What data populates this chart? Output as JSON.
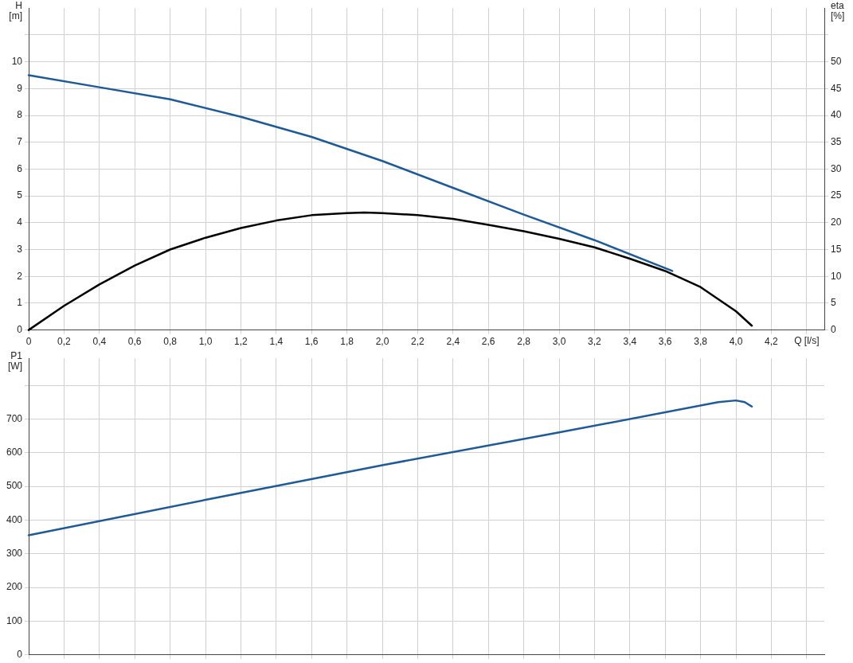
{
  "chart_data": [
    {
      "type": "line",
      "xlabel": "Q [l/s]",
      "ylabel": "H [m]",
      "y2label": "eta [%]",
      "xlim": [
        0,
        4.5
      ],
      "xticks": [
        0,
        {
          "value": 0.2,
          "label": "0,2"
        },
        {
          "value": 0.4,
          "label": "0,4"
        },
        {
          "value": 0.6,
          "label": "0,6"
        },
        {
          "value": 0.8,
          "label": "0,8"
        },
        {
          "value": 1,
          "label": "1,0"
        },
        {
          "value": 1.2,
          "label": "1,2"
        },
        {
          "value": 1.4,
          "label": "1,4"
        },
        {
          "value": 1.6,
          "label": "1,6"
        },
        {
          "value": 1.8,
          "label": "1,8"
        },
        {
          "value": 2,
          "label": "2,0"
        },
        {
          "value": 2.2,
          "label": "2,2"
        },
        {
          "value": 2.4,
          "label": "2,4"
        },
        {
          "value": 2.6,
          "label": "2,6"
        },
        {
          "value": 2.8,
          "label": "2,8"
        },
        {
          "value": 3,
          "label": "3,0"
        },
        {
          "value": 3.2,
          "label": "3,2"
        },
        {
          "value": 3.4,
          "label": "3,4"
        },
        {
          "value": 3.6,
          "label": "3,6"
        },
        {
          "value": 3.8,
          "label": "3,8"
        },
        {
          "value": 4,
          "label": "4,0"
        },
        {
          "value": 4.2,
          "label": "4,2"
        },
        {
          "value": 4.4,
          "label": null
        }
      ],
      "ylim": [
        0,
        12
      ],
      "yticks": [
        0,
        1,
        2,
        3,
        4,
        5,
        6,
        7,
        8,
        9,
        10,
        {
          "value": 11,
          "label": null
        }
      ],
      "y2lim": [
        0,
        60
      ],
      "y2ticks": [
        0,
        5,
        10,
        15,
        20,
        25,
        30,
        35,
        40,
        45,
        50,
        {
          "value": 55,
          "label": null
        }
      ],
      "grid": true,
      "legend": false,
      "marker": "none",
      "line_style": "solid",
      "series": [
        {
          "color": "#1f5a96",
          "x": [
            0,
            0.4,
            0.8,
            1.2,
            1.6,
            2.0,
            2.4,
            2.8,
            3.2,
            3.64
          ],
          "values": [
            9.5,
            9.05,
            8.6,
            7.95,
            7.2,
            6.3,
            5.3,
            4.3,
            3.35,
            2.2
          ]
        },
        {
          "color": "#000000",
          "axis": "y2",
          "x": [
            0,
            0.2,
            0.4,
            0.6,
            0.8,
            1.0,
            1.2,
            1.4,
            1.6,
            1.8,
            1.9,
            2.0,
            2.2,
            2.4,
            2.6,
            2.8,
            3.0,
            3.2,
            3.4,
            3.6,
            3.8,
            4.0,
            4.09
          ],
          "values": [
            0,
            4.5,
            8.5,
            12,
            15,
            17.2,
            19,
            20.4,
            21.4,
            21.8,
            21.9,
            21.8,
            21.4,
            20.7,
            19.6,
            18.4,
            17,
            15.4,
            13.3,
            11,
            8,
            3.5,
            0.8
          ]
        }
      ]
    },
    {
      "type": "line",
      "ylabel": "P1 [W]",
      "xlim": [
        0,
        4.5
      ],
      "xticks": [
        {
          "value": 0,
          "label": null
        },
        {
          "value": 0.2,
          "label": null
        },
        {
          "value": 0.4,
          "label": null
        },
        {
          "value": 0.6,
          "label": null
        },
        {
          "value": 0.8,
          "label": null
        },
        {
          "value": 1,
          "label": null
        },
        {
          "value": 1.2,
          "label": null
        },
        {
          "value": 1.4,
          "label": null
        },
        {
          "value": 1.6,
          "label": null
        },
        {
          "value": 1.8,
          "label": null
        },
        {
          "value": 2,
          "label": null
        },
        {
          "value": 2.2,
          "label": null
        },
        {
          "value": 2.4,
          "label": null
        },
        {
          "value": 2.6,
          "label": null
        },
        {
          "value": 2.8,
          "label": null
        },
        {
          "value": 3,
          "label": null
        },
        {
          "value": 3.2,
          "label": null
        },
        {
          "value": 3.4,
          "label": null
        },
        {
          "value": 3.6,
          "label": null
        },
        {
          "value": 3.8,
          "label": null
        },
        {
          "value": 4,
          "label": null
        },
        {
          "value": 4.2,
          "label": null
        },
        {
          "value": 4.4,
          "label": null
        }
      ],
      "ylim": [
        0,
        880
      ],
      "yticks": [
        0,
        100,
        200,
        300,
        400,
        500,
        600,
        700,
        {
          "value": 800,
          "label": null
        }
      ],
      "grid": true,
      "legend": false,
      "marker": "none",
      "line_style": "solid",
      "tick_labels": "y",
      "series": [
        {
          "color": "#1f5a96",
          "x": [
            0,
            1,
            2,
            3,
            3.9,
            4.0,
            4.05,
            4.09
          ],
          "values": [
            355,
            460,
            563,
            660,
            750,
            755,
            750,
            737
          ]
        }
      ]
    }
  ]
}
